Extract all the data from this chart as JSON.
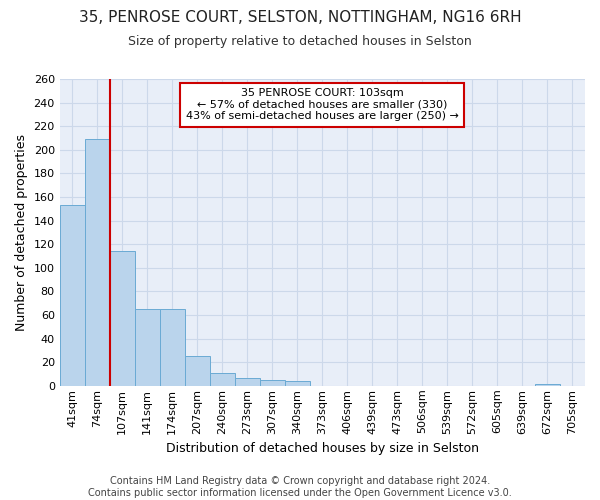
{
  "title_line1": "35, PENROSE COURT, SELSTON, NOTTINGHAM, NG16 6RH",
  "title_line2": "Size of property relative to detached houses in Selston",
  "xlabel": "Distribution of detached houses by size in Selston",
  "ylabel": "Number of detached properties",
  "categories": [
    "41sqm",
    "74sqm",
    "107sqm",
    "141sqm",
    "174sqm",
    "207sqm",
    "240sqm",
    "273sqm",
    "307sqm",
    "340sqm",
    "373sqm",
    "406sqm",
    "439sqm",
    "473sqm",
    "506sqm",
    "539sqm",
    "572sqm",
    "605sqm",
    "639sqm",
    "672sqm",
    "705sqm"
  ],
  "values": [
    153,
    209,
    114,
    65,
    65,
    25,
    11,
    7,
    5,
    4,
    0,
    0,
    0,
    0,
    0,
    0,
    0,
    0,
    0,
    2,
    0
  ],
  "bar_color": "#bad4ec",
  "bar_edge_color": "#6aaad4",
  "grid_color": "#ccd8ea",
  "bg_color": "#e8eef8",
  "vline_x_idx": 2,
  "vline_color": "#cc0000",
  "annotation_text": "35 PENROSE COURT: 103sqm\n← 57% of detached houses are smaller (330)\n43% of semi-detached houses are larger (250) →",
  "annotation_box_color": "#ffffff",
  "annotation_box_edge": "#cc0000",
  "footer": "Contains HM Land Registry data © Crown copyright and database right 2024.\nContains public sector information licensed under the Open Government Licence v3.0.",
  "ylim": [
    0,
    260
  ],
  "yticks": [
    0,
    20,
    40,
    60,
    80,
    100,
    120,
    140,
    160,
    180,
    200,
    220,
    240,
    260
  ],
  "title_fontsize": 11,
  "subtitle_fontsize": 9,
  "ylabel_fontsize": 9,
  "xlabel_fontsize": 9,
  "tick_fontsize": 8,
  "annot_fontsize": 8,
  "footer_fontsize": 7
}
